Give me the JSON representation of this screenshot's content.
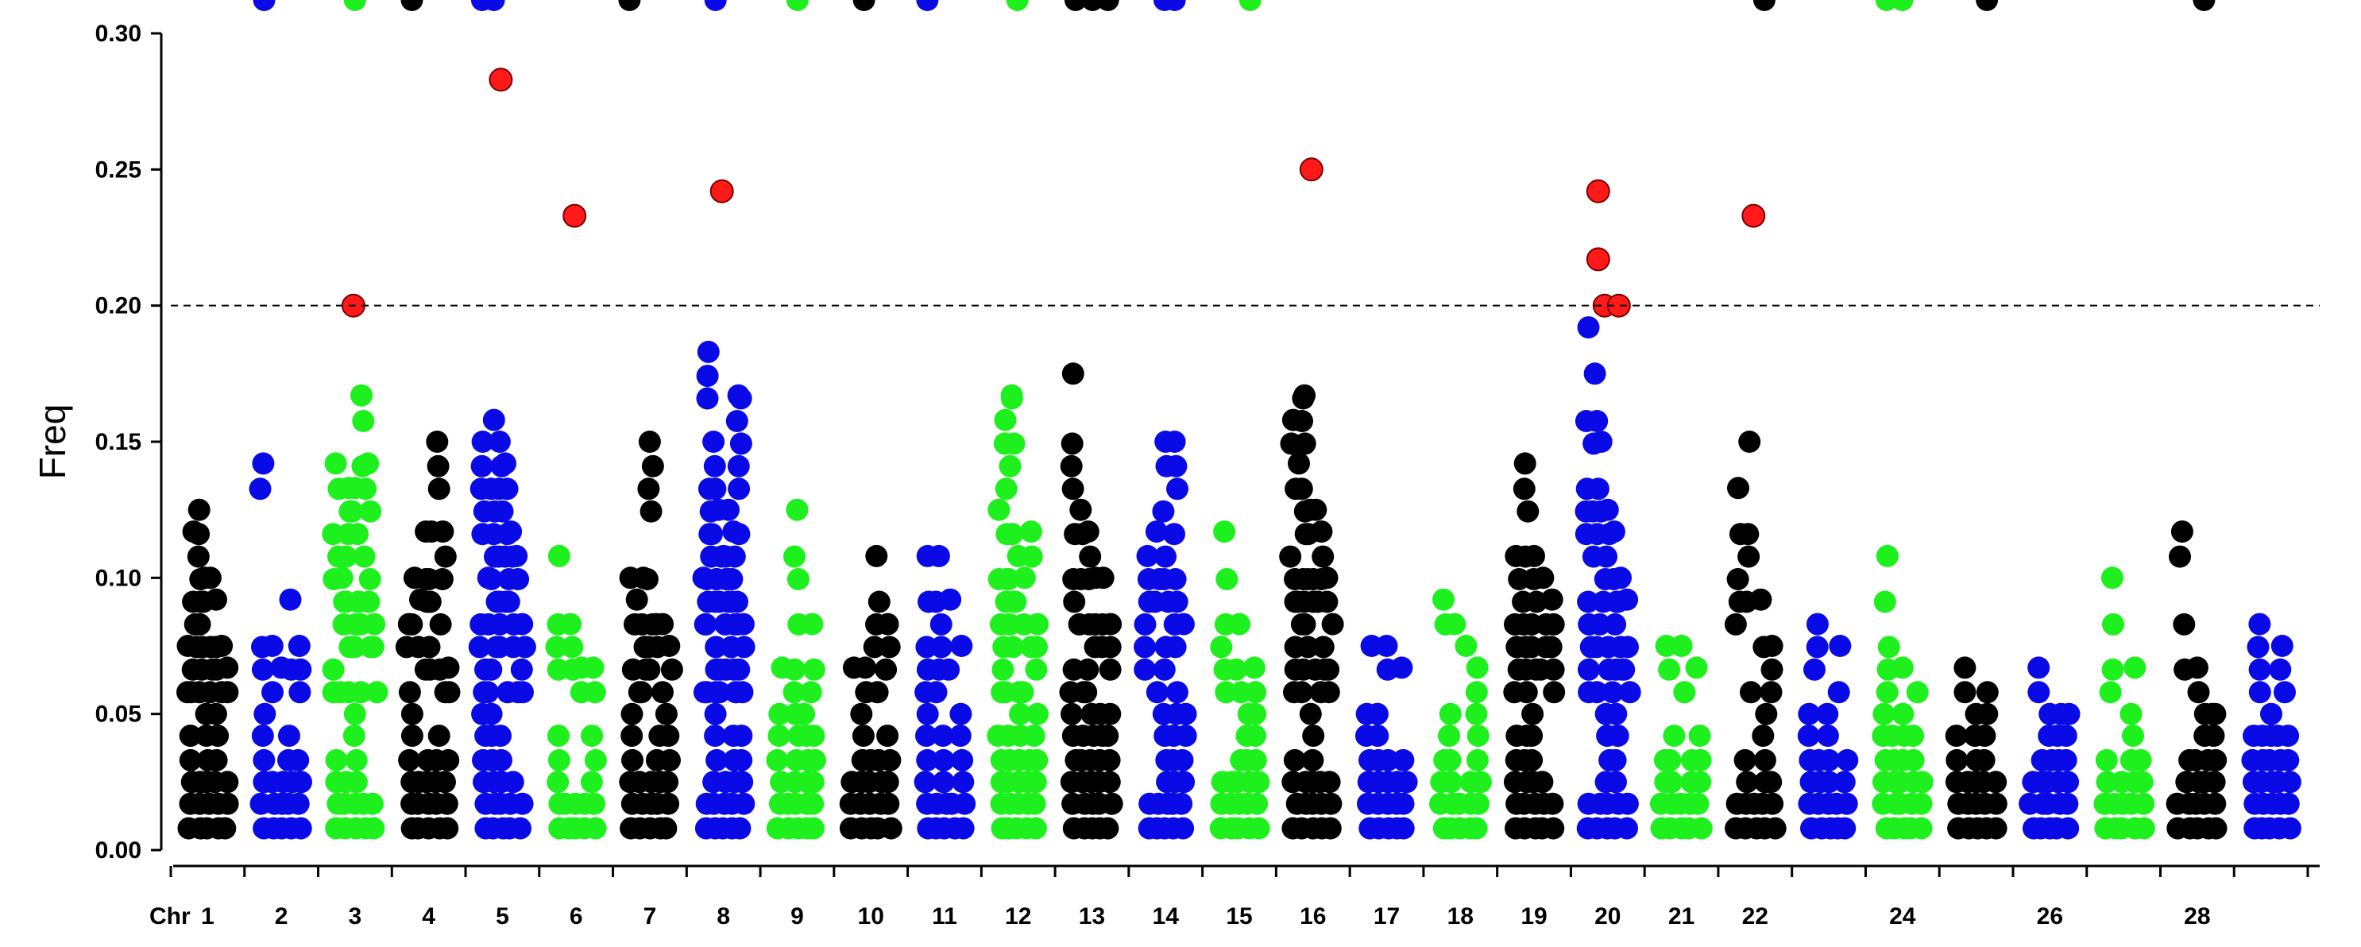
{
  "chart_data": {
    "type": "scatter",
    "subtype": "manhattan",
    "ylabel": "Freq",
    "xlabel_prefix": "Chr",
    "ylim": [
      0,
      0.3
    ],
    "yticks": [
      0.0,
      0.05,
      0.1,
      0.15,
      0.2,
      0.25,
      0.3
    ],
    "ytick_labels": [
      "0.00",
      "0.05",
      "0.10",
      "0.15",
      "0.20",
      "0.25",
      "0.30"
    ],
    "threshold": 0.2,
    "grid": false,
    "colors": {
      "black": "#000000",
      "blue": "#0a0ae6",
      "green": "#1ef01e",
      "significant": "#ff1a1a",
      "significant_edge": "#7a0000"
    },
    "chromosome_color_cycle": [
      "black",
      "blue",
      "green"
    ],
    "chromosomes": [
      {
        "chr": "1",
        "label": "1",
        "upper": [
          0.075,
          0.117,
          0.125,
          0.1,
          0.1,
          0.092,
          0.075,
          0.067
        ]
      },
      {
        "chr": "2",
        "label": "2",
        "upper": [
          0.142,
          0.075,
          0.067,
          0.092,
          0.075
        ]
      },
      {
        "chr": "3",
        "label": "3",
        "upper": [
          0.142,
          0.1,
          0.133,
          0.133,
          0.167,
          0.142,
          0.083
        ]
      },
      {
        "chr": "4",
        "label": "4",
        "upper": [
          0.083,
          0.1,
          0.092,
          0.117,
          0.117,
          0.15,
          0.117,
          0.067
        ]
      },
      {
        "chr": "5",
        "label": "5",
        "upper": [
          0.15,
          0.1,
          0.158,
          0.15,
          0.142,
          0.117,
          0.108,
          0.083
        ]
      },
      {
        "chr": "6",
        "label": "6",
        "upper": [
          0.108,
          0.083,
          0.067,
          0.067
        ]
      },
      {
        "chr": "7",
        "label": "7",
        "upper": [
          0.1,
          0.092,
          0.1,
          0.15,
          0.083,
          0.083,
          0.075
        ]
      },
      {
        "chr": "8",
        "label": "8",
        "upper": [
          0.1,
          0.183,
          0.15,
          0.125,
          0.108,
          0.125,
          0.117,
          0.167,
          0.083
        ]
      },
      {
        "chr": "9",
        "label": "9",
        "upper": [
          0.067,
          0.125,
          0.083
        ]
      },
      {
        "chr": "10",
        "label": "10",
        "upper": [
          0.067,
          0.067,
          0.108,
          0.083
        ]
      },
      {
        "chr": "11",
        "label": "11",
        "upper": [
          0.108,
          0.108,
          0.092,
          0.075
        ]
      },
      {
        "chr": "12",
        "label": "12",
        "upper": [
          0.125,
          0.158,
          0.167,
          0.108,
          0.1,
          0.117,
          0.083
        ]
      },
      {
        "chr": "13",
        "label": "13",
        "upper": [
          0.175,
          0.125,
          0.117,
          0.1,
          0.1,
          0.083
        ]
      },
      {
        "chr": "14",
        "label": "14",
        "upper": [
          0.108,
          0.117,
          0.15,
          0.15,
          0.083
        ]
      },
      {
        "chr": "15",
        "label": "15",
        "upper": [
          0.117,
          0.083,
          0.067
        ]
      },
      {
        "chr": "16",
        "label": "16",
        "upper": [
          0.158,
          0.142,
          0.167,
          0.125,
          0.125,
          0.117,
          0.1,
          0.083
        ]
      },
      {
        "chr": "17",
        "label": "17",
        "upper": [
          0.075,
          0.075,
          0.067
        ]
      },
      {
        "chr": "18",
        "label": "18",
        "upper": [
          0.092,
          0.083,
          0.075,
          0.067
        ]
      },
      {
        "chr": "19",
        "label": "19",
        "upper": [
          0.108,
          0.142,
          0.108,
          0.1,
          0.092
        ]
      },
      {
        "chr": "20",
        "label": "20",
        "upper": [
          0.192,
          0.175,
          0.15,
          0.125,
          0.117,
          0.1,
          0.092
        ]
      },
      {
        "chr": "21",
        "label": "21",
        "upper": [
          0.075,
          0.075,
          0.067
        ]
      },
      {
        "chr": "22",
        "label": "22",
        "upper": [
          0.133,
          0.15,
          0.092,
          0.075
        ]
      },
      {
        "chr": "23",
        "label": "",
        "upper": [
          0.083,
          0.075
        ]
      },
      {
        "chr": "24",
        "label": "24",
        "upper": [
          0.108,
          0.067,
          0.058
        ]
      },
      {
        "chr": "25",
        "label": "",
        "upper": [
          0.067,
          0.058
        ]
      },
      {
        "chr": "26",
        "label": "26",
        "upper": [
          0.067,
          0.05
        ]
      },
      {
        "chr": "27",
        "label": "",
        "upper": [
          0.1,
          0.067
        ]
      },
      {
        "chr": "28",
        "label": "28",
        "upper": [
          0.117,
          0.067,
          0.05
        ]
      },
      {
        "chr": "29",
        "label": "",
        "upper": [
          0.083,
          0.075
        ]
      }
    ],
    "significant_points": [
      {
        "chr": "3",
        "value": 0.2
      },
      {
        "chr": "5",
        "value": 0.283
      },
      {
        "chr": "6",
        "value": 0.233
      },
      {
        "chr": "8",
        "value": 0.242
      },
      {
        "chr": "16",
        "value": 0.25
      },
      {
        "chr": "20",
        "value": 0.242
      },
      {
        "chr": "20",
        "value": 0.217
      },
      {
        "chr": "20",
        "value": 0.2
      },
      {
        "chr": "20",
        "value": 0.2
      },
      {
        "chr": "22",
        "value": 0.233
      }
    ]
  }
}
